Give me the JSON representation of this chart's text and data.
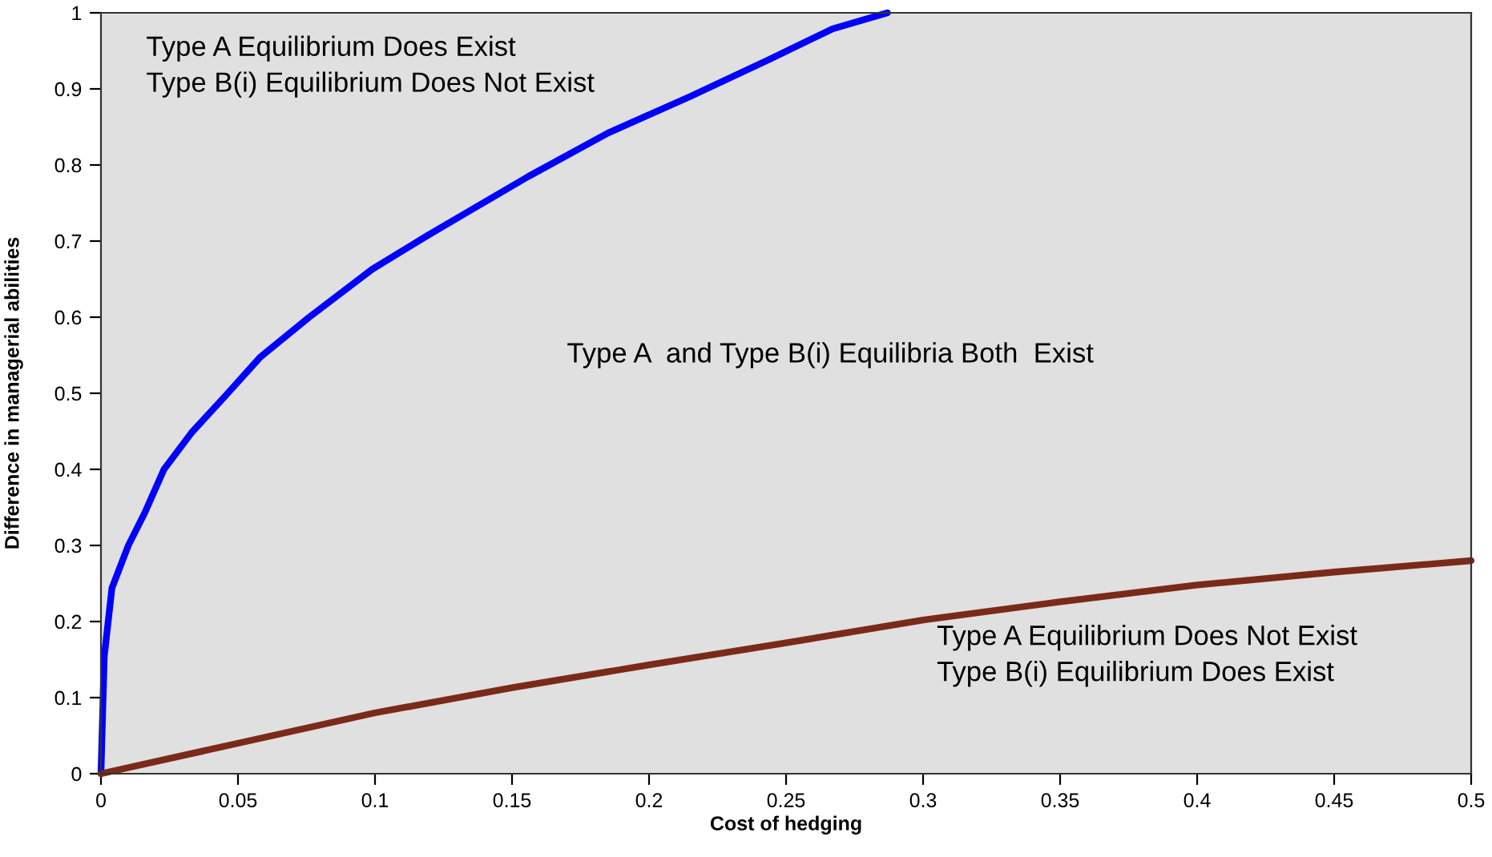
{
  "chart_data": {
    "type": "line",
    "xlabel": "Cost of hedging",
    "ylabel": "Difference in managerial abilities",
    "xlim": [
      0,
      0.5
    ],
    "ylim": [
      0,
      1
    ],
    "xticks": [
      0,
      0.05,
      0.1,
      0.15,
      0.2,
      0.25,
      0.3,
      0.35,
      0.4,
      0.45,
      0.5
    ],
    "yticks": [
      0,
      0.1,
      0.2,
      0.3,
      0.4,
      0.5,
      0.6,
      0.7,
      0.8,
      0.9,
      1
    ],
    "grid": false,
    "legend": false,
    "marker": "none",
    "line_style": "solid",
    "series": [
      {
        "color": "#0000ff",
        "x": [
          0,
          0.0012,
          0.004,
          0.01,
          0.016,
          0.023,
          0.033,
          0.045,
          0.058,
          0.076,
          0.099,
          0.119,
          0.137,
          0.156,
          0.185,
          0.215,
          0.244,
          0.267,
          0.287
        ],
        "values": [
          0,
          0.154,
          0.244,
          0.3,
          0.343,
          0.4,
          0.448,
          0.495,
          0.547,
          0.6,
          0.663,
          0.707,
          0.745,
          0.785,
          0.842,
          0.89,
          0.939,
          0.979,
          1.0
        ]
      },
      {
        "color": "#7b2a1a",
        "x": [
          0,
          0.05,
          0.1,
          0.15,
          0.2,
          0.25,
          0.3,
          0.35,
          0.4,
          0.45,
          0.5
        ],
        "values": [
          0,
          0.04,
          0.08,
          0.113,
          0.143,
          0.172,
          0.202,
          0.226,
          0.248,
          0.265,
          0.28
        ]
      }
    ],
    "annotations": [
      "Type A Equilibrium Does Exist\nType B(i) Equilibrium Does Not Exist",
      "Type A  and Type B(i) Equilibria Both  Exist",
      "Type A Equilibrium Does Not Exist\nType B(i) Equilibrium Does Exist"
    ]
  }
}
